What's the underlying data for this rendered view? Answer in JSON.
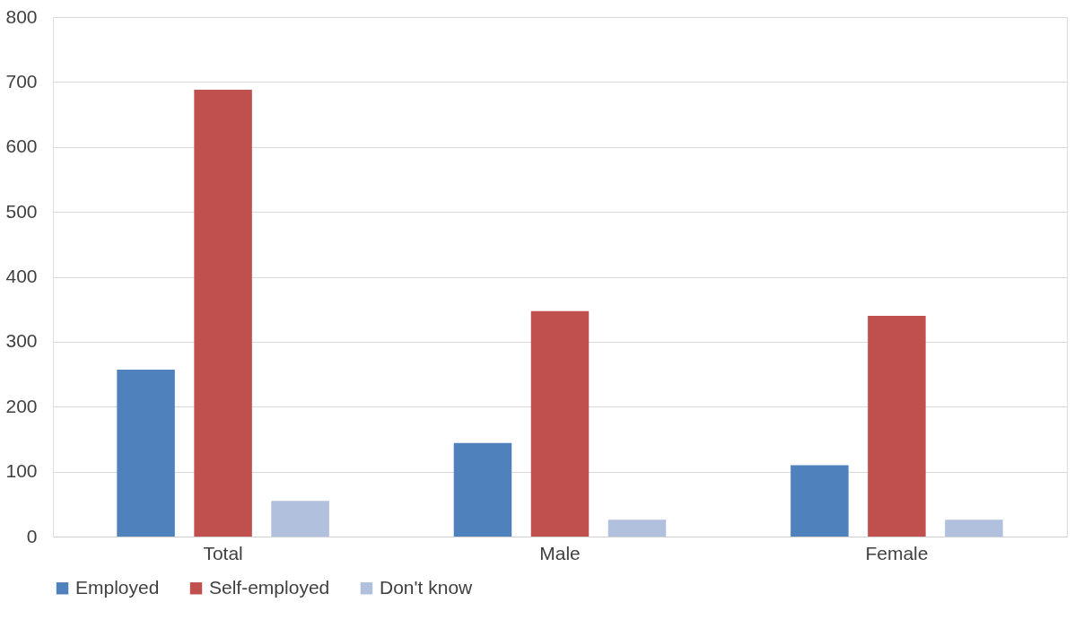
{
  "chart_data": {
    "type": "bar",
    "categories": [
      "Total",
      "Male",
      "Female"
    ],
    "series": [
      {
        "name": "Employed",
        "color": "#4f81bd",
        "values": [
          257,
          144,
          110
        ]
      },
      {
        "name": "Self-employed",
        "color": "#c0504d",
        "values": [
          688,
          347,
          340
        ]
      },
      {
        "name": "Don't know",
        "color": "#b0c0dd",
        "values": [
          55,
          26,
          26
        ]
      }
    ],
    "ylim": [
      0,
      800
    ],
    "yticks": [
      0,
      100,
      200,
      300,
      400,
      500,
      600,
      700,
      800
    ],
    "grid": "y",
    "legend": "bottom"
  }
}
